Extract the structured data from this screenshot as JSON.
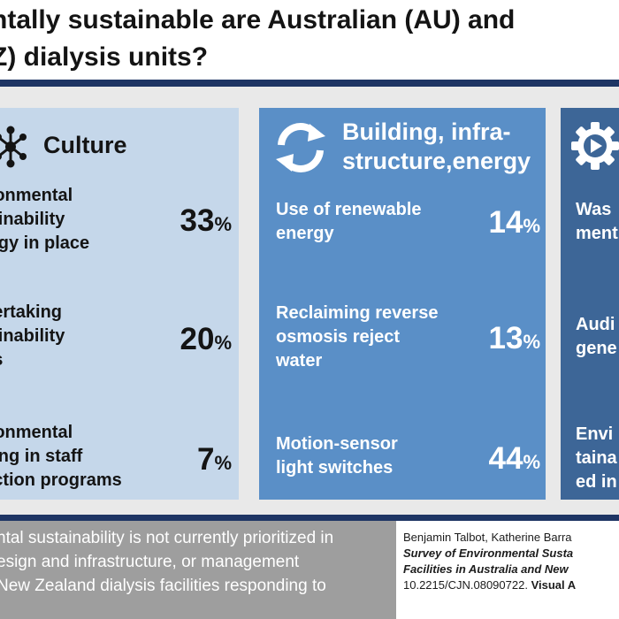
{
  "title": {
    "line1": "ntally sustainable are Australian (AU) and",
    "line2": "Z) dialysis units?"
  },
  "panels": [
    {
      "heading": "Culture",
      "icon": "network-icon",
      "items": [
        {
          "label": [
            "ironmental",
            "tainability",
            "tegy in place"
          ],
          "value": "33",
          "unit": "%"
        },
        {
          "label": [
            "dertaking",
            "tainability",
            "its"
          ],
          "value": "20",
          "unit": "%"
        },
        {
          "label": [
            "ironmental",
            "ning in staff",
            "uction programs"
          ],
          "value": "7",
          "unit": "%"
        }
      ]
    },
    {
      "heading": [
        "Building, infra-",
        "structure,energy"
      ],
      "icon": "refresh-icon",
      "items": [
        {
          "label": [
            "Use of renewable",
            "energy"
          ],
          "value": "14",
          "unit": "%"
        },
        {
          "label": [
            "Reclaiming reverse",
            "osmosis reject",
            "water"
          ],
          "value": "13",
          "unit": "%"
        },
        {
          "label": [
            "Motion-sensor",
            "light switches"
          ],
          "value": "44",
          "unit": "%"
        }
      ]
    },
    {
      "icon": "gear-play-icon",
      "items": [
        {
          "label": [
            "Was",
            "ment"
          ]
        },
        {
          "label": [
            "Audi",
            "gene"
          ]
        },
        {
          "label": [
            "Envi",
            "taina",
            "ed in"
          ]
        }
      ]
    }
  ],
  "footer": {
    "left_lines": [
      "ntal sustainability is not currently prioritized in",
      "esign and infrastructure, or management",
      "New Zealand dialysis facilities responding to"
    ],
    "authors": "Benjamin Talbot, Katherine Barra",
    "citation_line1": "Survey of Environmental Susta",
    "citation_line2": "Facilities in Australia and New",
    "doi": "10.2215/CJN.08090722.",
    "visual": "Visual A"
  },
  "colors": {
    "navy": "#1e3564",
    "culture_panel": "#c5d7ea",
    "building_panel": "#5a8fc7",
    "waste_panel": "#3d6697",
    "footer_grey": "#9e9e9e"
  }
}
